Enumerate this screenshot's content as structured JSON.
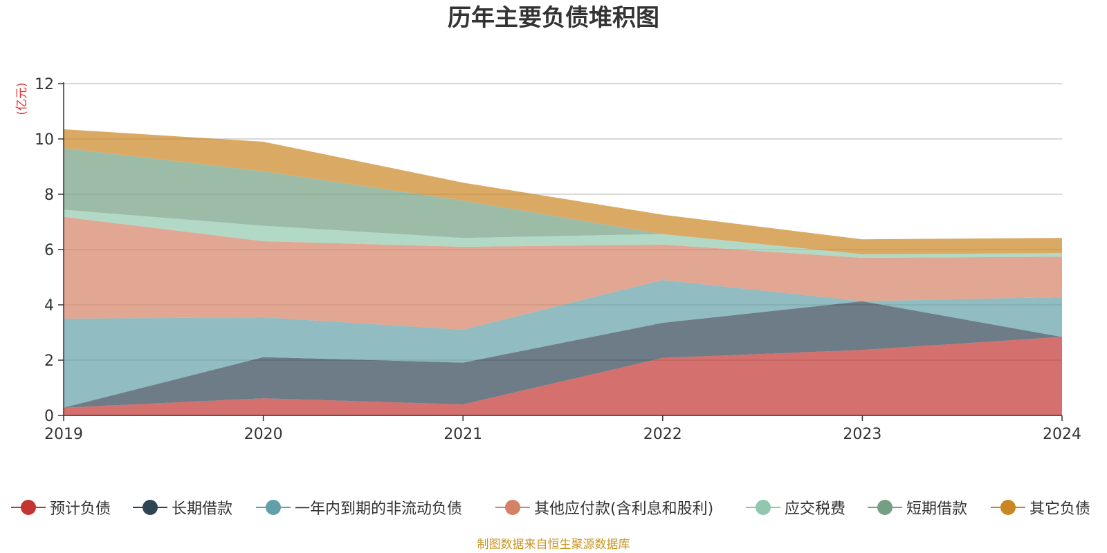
{
  "chart_data": {
    "type": "area",
    "stacked": true,
    "title": "历年主要负债堆积图",
    "unit_label": "(亿元)",
    "xlabel": "",
    "ylabel": "(亿元)",
    "ylim": [
      0,
      12
    ],
    "yticks": [
      0,
      2,
      4,
      6,
      8,
      10,
      12
    ],
    "grid": true,
    "legend_position": "bottom",
    "categories": [
      "2019",
      "2020",
      "2021",
      "2022",
      "2023",
      "2024"
    ],
    "series": [
      {
        "name": "预计负债",
        "color": "#c23531",
        "values": [
          0.28,
          0.62,
          0.4,
          2.08,
          2.37,
          2.84
        ]
      },
      {
        "name": "长期借款",
        "color": "#2f4554",
        "values": [
          0.0,
          1.49,
          1.51,
          1.27,
          1.76,
          0.0
        ]
      },
      {
        "name": "一年内到期的非流动负债",
        "color": "#61a0a8",
        "values": [
          3.22,
          1.44,
          1.19,
          1.55,
          0.0,
          1.44
        ]
      },
      {
        "name": "其他应付款(含利息和股利)",
        "color": "#d48265",
        "values": [
          3.68,
          2.75,
          3.0,
          1.28,
          1.57,
          1.46
        ]
      },
      {
        "name": "应交税费",
        "color": "#91c7ae",
        "values": [
          0.26,
          0.56,
          0.32,
          0.38,
          0.13,
          0.13
        ]
      },
      {
        "name": "短期借款",
        "color": "#749f83",
        "values": [
          2.23,
          1.97,
          1.35,
          0.0,
          0.0,
          0.0
        ]
      },
      {
        "name": "其它负债",
        "color": "#ca8622",
        "values": [
          0.68,
          1.07,
          0.65,
          0.7,
          0.54,
          0.55
        ]
      }
    ],
    "source_note": "制图数据来自恒生聚源数据库"
  }
}
